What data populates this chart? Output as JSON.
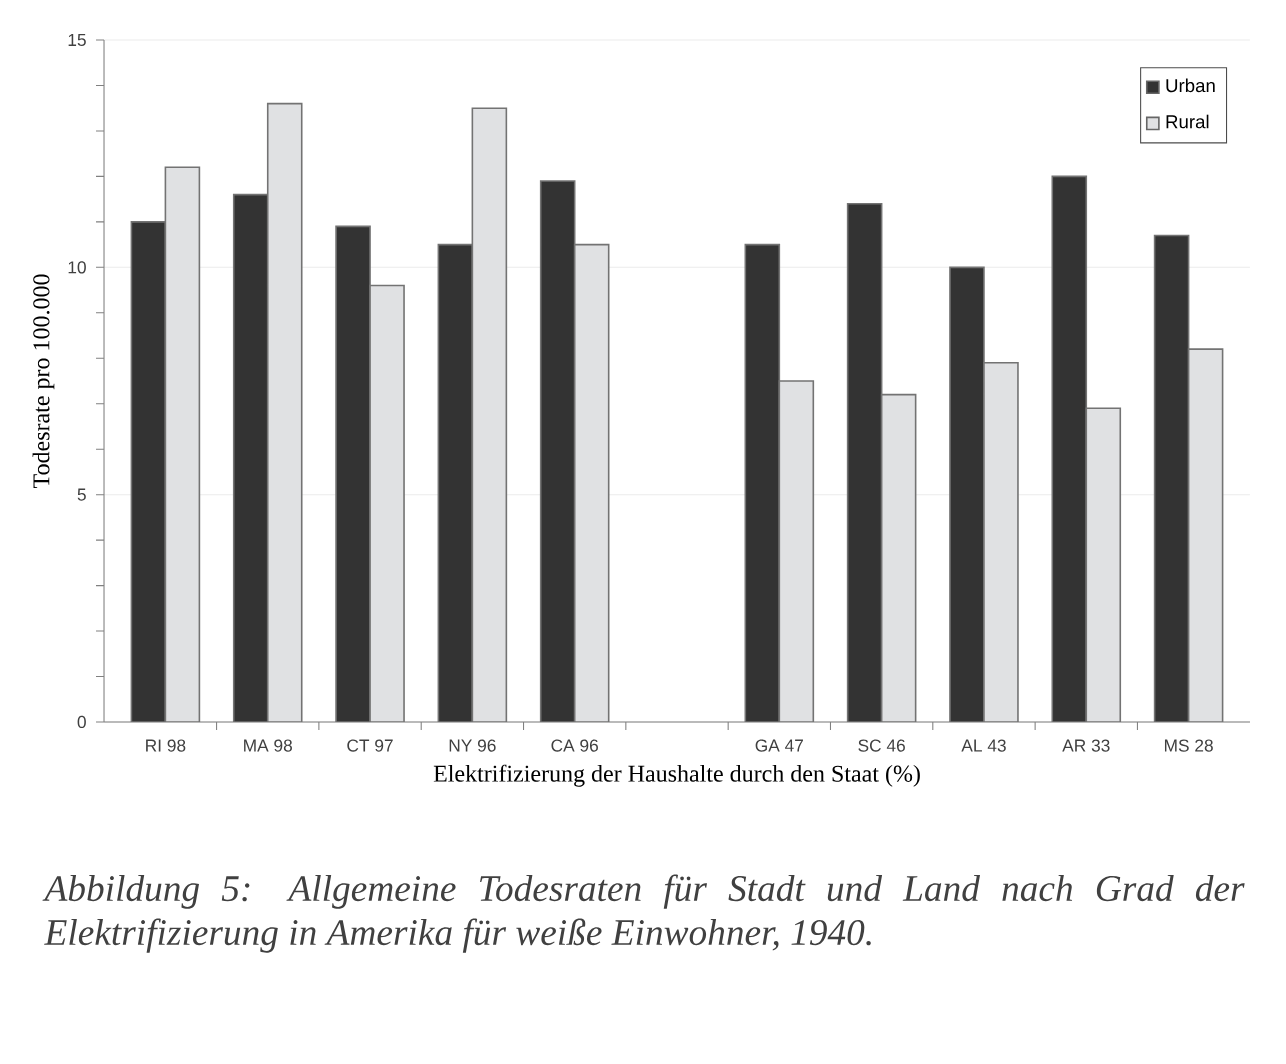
{
  "chart_data": {
    "type": "bar",
    "xlabel": "Elektrifizierung der Haushalte durch den Staat (%)",
    "ylabel": "Todesrate pro 100.000",
    "categories": [
      "RI 98",
      "MA 98",
      "CT 97",
      "NY 96",
      "CA 96",
      null,
      "GA 47",
      "SC 46",
      "AL 43",
      "AR 33",
      "MS 28"
    ],
    "series": [
      {
        "name": "Urban",
        "color": "#333333",
        "values": [
          11.0,
          11.6,
          10.9,
          10.5,
          11.9,
          null,
          10.5,
          11.4,
          10.0,
          12.0,
          10.7
        ]
      },
      {
        "name": "Rural",
        "color": "#e0e1e3",
        "values": [
          12.2,
          13.6,
          9.6,
          13.5,
          10.5,
          null,
          7.5,
          7.2,
          7.9,
          6.9,
          8.2
        ]
      }
    ],
    "ylim": [
      0,
      15
    ],
    "yticks": [
      0,
      5,
      10,
      15
    ],
    "grid": "y",
    "legend": "top right",
    "annotations": [
      "*Abbildung 5: Allgemeine Todesraten für Stadt und Land nach Grad der Elektrifizierung in Amerika für weiße Einwohner, 1940.*"
    ]
  }
}
